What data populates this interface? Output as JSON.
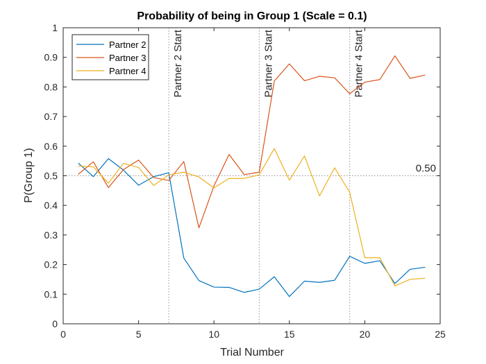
{
  "chart_data": {
    "type": "line",
    "title": "Probability of being in Group 1 (Scale = 0.1)",
    "xlabel": "Trial Number",
    "ylabel": "P(Group 1)",
    "xlim": [
      0,
      25
    ],
    "ylim": [
      0,
      1
    ],
    "xticks": [
      0,
      5,
      10,
      15,
      20,
      25
    ],
    "yticks": [
      0,
      0.1,
      0.2,
      0.3,
      0.4,
      0.5,
      0.6,
      0.7,
      0.8,
      0.9,
      1
    ],
    "grid": false,
    "legend_position": "top-left",
    "x": [
      1,
      2,
      3,
      4,
      5,
      6,
      7,
      8,
      9,
      10,
      11,
      12,
      13,
      14,
      15,
      16,
      17,
      18,
      19,
      20,
      21,
      22,
      23,
      24
    ],
    "series": [
      {
        "name": "Partner 2",
        "color": "#0072BD",
        "values": [
          0.543,
          0.497,
          0.558,
          0.519,
          0.468,
          0.497,
          0.51,
          0.222,
          0.146,
          0.124,
          0.123,
          0.106,
          0.117,
          0.159,
          0.092,
          0.144,
          0.14,
          0.147,
          0.228,
          0.204,
          0.213,
          0.136,
          0.184,
          0.191
        ]
      },
      {
        "name": "Partner 3",
        "color": "#D95319",
        "values": [
          0.505,
          0.547,
          0.46,
          0.521,
          0.553,
          0.494,
          0.484,
          0.548,
          0.324,
          0.466,
          0.572,
          0.504,
          0.512,
          0.82,
          0.878,
          0.821,
          0.836,
          0.831,
          0.777,
          0.816,
          0.825,
          0.905,
          0.829,
          0.84
        ]
      },
      {
        "name": "Partner 4",
        "color": "#EDB120",
        "values": [
          0.533,
          0.53,
          0.475,
          0.542,
          0.528,
          0.467,
          0.503,
          0.512,
          0.496,
          0.459,
          0.491,
          0.491,
          0.503,
          0.592,
          0.485,
          0.567,
          0.432,
          0.527,
          0.444,
          0.223,
          0.223,
          0.128,
          0.15,
          0.154
        ]
      }
    ],
    "reference_lines": {
      "horizontal": {
        "y": 0.5,
        "label": "0.50"
      },
      "vertical": [
        {
          "x": 7,
          "label": "Partner 2 Start"
        },
        {
          "x": 13,
          "label": "Partner 3 Start"
        },
        {
          "x": 19,
          "label": "Partner 4 Start"
        }
      ]
    }
  }
}
